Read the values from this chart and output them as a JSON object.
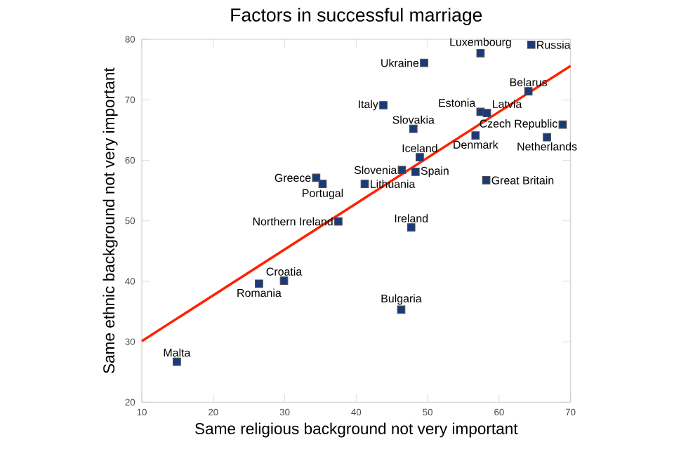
{
  "chart_data": {
    "type": "scatter",
    "title": "Factors in successful marriage",
    "xlabel": "Same religious background not very important",
    "ylabel": "Same ethnic background not very important",
    "xlim": [
      10,
      70
    ],
    "ylim": [
      20,
      80
    ],
    "xticks": [
      10,
      20,
      30,
      40,
      50,
      60,
      70
    ],
    "yticks": [
      20,
      30,
      40,
      50,
      60,
      70,
      80
    ],
    "series": [
      {
        "type": "scatter",
        "marker": "square",
        "color": "#1a3a7a",
        "x": [
          14.9,
          26.4,
          29.9,
          37.5,
          46.3,
          47.7,
          34.4,
          35.3,
          41.2,
          46.4,
          48.3,
          48.9,
          43.8,
          48.0,
          49.5,
          57.4,
          64.5,
          64.1,
          57.4,
          58.3,
          68.9,
          66.7,
          56.7,
          58.2
        ],
        "values": [
          26.7,
          39.6,
          40.1,
          49.9,
          35.3,
          48.9,
          57.1,
          56.1,
          56.1,
          58.4,
          58.1,
          60.5,
          69.1,
          65.2,
          76.1,
          77.7,
          79.1,
          71.4,
          68.0,
          67.8,
          65.9,
          63.8,
          64.1,
          56.7
        ]
      },
      {
        "type": "line",
        "color": "#ff2200",
        "x": [
          10,
          70
        ],
        "values": [
          30.1,
          75.6
        ]
      }
    ],
    "annotations": [
      {
        "text": "Malta",
        "x": 14.9,
        "y": 26.7
      },
      {
        "text": "Romania",
        "x": 26.4,
        "y": 39.6
      },
      {
        "text": "Croatia",
        "x": 29.9,
        "y": 40.1
      },
      {
        "text": "Northern Ireland",
        "x": 37.5,
        "y": 49.9
      },
      {
        "text": "Bulgaria",
        "x": 46.3,
        "y": 35.3
      },
      {
        "text": "Ireland",
        "x": 47.7,
        "y": 48.9
      },
      {
        "text": "Greece",
        "x": 34.4,
        "y": 57.1
      },
      {
        "text": "Portugal",
        "x": 35.3,
        "y": 56.1
      },
      {
        "text": "Lithuania",
        "x": 41.2,
        "y": 56.1
      },
      {
        "text": "Slovenia",
        "x": 46.4,
        "y": 58.4
      },
      {
        "text": "Spain",
        "x": 48.3,
        "y": 58.1
      },
      {
        "text": "Iceland",
        "x": 48.9,
        "y": 60.5
      },
      {
        "text": "Italy",
        "x": 43.8,
        "y": 69.1
      },
      {
        "text": "Slovakia",
        "x": 48.0,
        "y": 65.2
      },
      {
        "text": "Ukraine",
        "x": 49.5,
        "y": 76.1
      },
      {
        "text": "Luxembourg",
        "x": 57.4,
        "y": 77.7
      },
      {
        "text": "Russia",
        "x": 64.5,
        "y": 79.1
      },
      {
        "text": "Belarus",
        "x": 64.1,
        "y": 71.4
      },
      {
        "text": "Estonia",
        "x": 57.4,
        "y": 68.0
      },
      {
        "text": "Latvia",
        "x": 58.3,
        "y": 67.8
      },
      {
        "text": "Czech Republic",
        "x": 68.9,
        "y": 65.9
      },
      {
        "text": "Netherlands",
        "x": 66.7,
        "y": 63.8
      },
      {
        "text": "Denmark",
        "x": 56.7,
        "y": 64.1
      },
      {
        "text": "Great Britain",
        "x": 58.2,
        "y": 56.7
      }
    ]
  }
}
